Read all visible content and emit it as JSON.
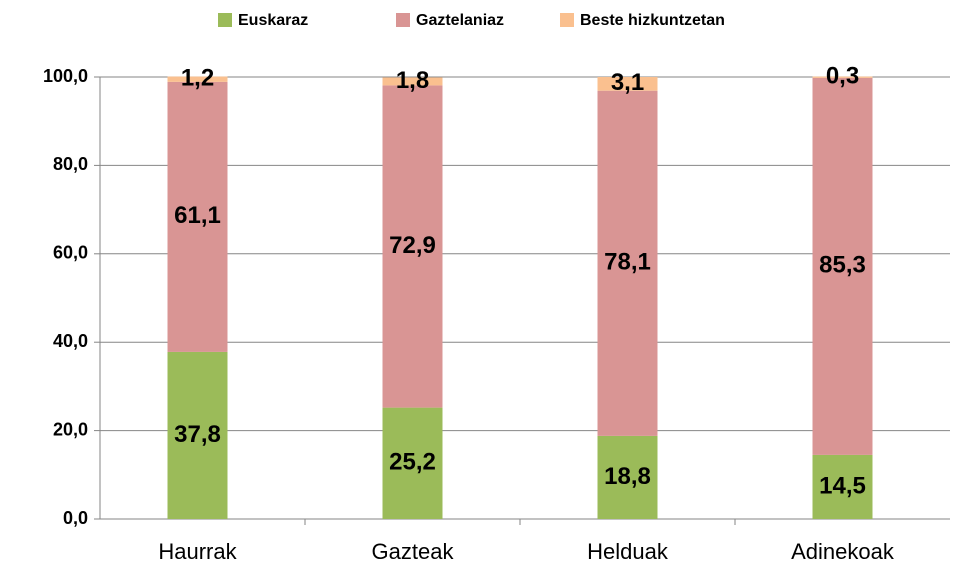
{
  "chart_data": {
    "type": "stacked_bar",
    "categories": [
      "Haurrak",
      "Gazteak",
      "Helduak",
      "Adinekoak"
    ],
    "series": [
      {
        "name": "Euskaraz",
        "color": "#9bbb59",
        "values": [
          37.8,
          25.2,
          18.8,
          14.5
        ],
        "value_labels": [
          "37,8",
          "25,2",
          "18,8",
          "14,5"
        ]
      },
      {
        "name": "Gaztelaniaz",
        "color": "#d99594",
        "values": [
          61.1,
          72.9,
          78.1,
          85.3
        ],
        "value_labels": [
          "61,1",
          "72,9",
          "78,1",
          "85,3"
        ]
      },
      {
        "name": "Beste hizkuntzetan",
        "color": "#fac08f",
        "values": [
          1.2,
          1.8,
          3.1,
          0.3
        ],
        "value_labels": [
          "1,2",
          "1,8",
          "3,1",
          "0,3"
        ]
      }
    ],
    "ylim": [
      0,
      100
    ],
    "yticks": [
      {
        "value": 0,
        "label": "0,0"
      },
      {
        "value": 20,
        "label": "20,0"
      },
      {
        "value": 40,
        "label": "40,0"
      },
      {
        "value": 60,
        "label": "60,0"
      },
      {
        "value": 80,
        "label": "80,0"
      },
      {
        "value": 100,
        "label": "100,0"
      }
    ],
    "grid": true,
    "legend": "top"
  }
}
